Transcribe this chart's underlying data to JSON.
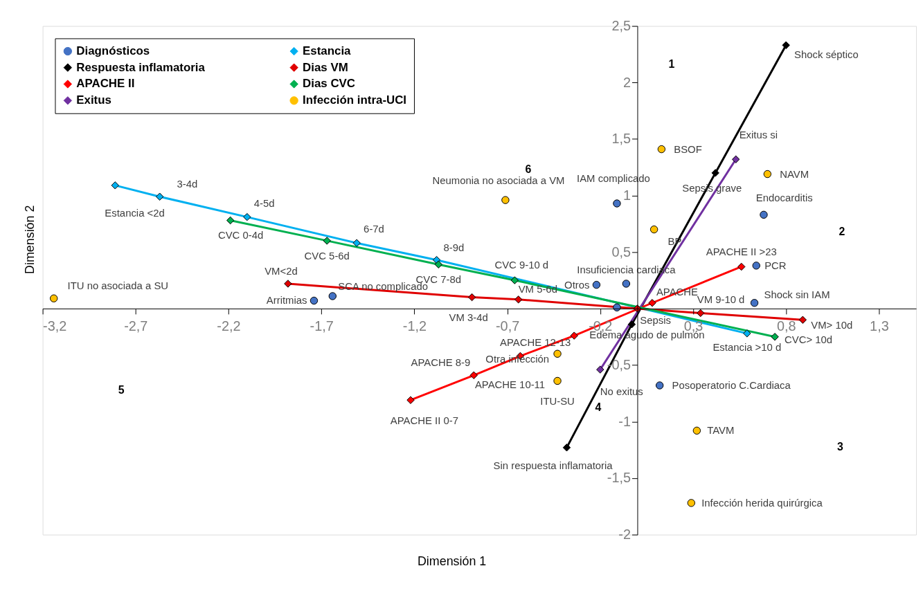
{
  "chart_data": {
    "type": "scatter",
    "xlabel": "Dimensión 1",
    "ylabel": "Dimensión 2",
    "xlim": [
      -3.2,
      1.5
    ],
    "ylim": [
      -2,
      2.5
    ],
    "xticks": [
      {
        "value": -3.2,
        "label": "-3,2"
      },
      {
        "value": -2.7,
        "label": "-2,7"
      },
      {
        "value": -2.2,
        "label": "-2,2"
      },
      {
        "value": -1.7,
        "label": "-1,7"
      },
      {
        "value": -1.2,
        "label": "-1,2"
      },
      {
        "value": -0.7,
        "label": "-0,7"
      },
      {
        "value": -0.2,
        "label": "-0,2"
      },
      {
        "value": 0.3,
        "label": "0,3"
      },
      {
        "value": 0.8,
        "label": "0,8"
      },
      {
        "value": 1.3,
        "label": "1,3"
      }
    ],
    "yticks": [
      -2,
      {
        "value": -1.5,
        "label": "-1,5"
      },
      -1,
      {
        "value": -0.5,
        "label": "-0,5"
      },
      {
        "value": 0.5,
        "label": "0,5"
      },
      1,
      {
        "value": 1.5,
        "label": "1,5"
      },
      2,
      {
        "value": 2.5,
        "label": "2,5"
      }
    ],
    "grid": false,
    "legend": "top left",
    "series": [
      {
        "name": "Diagnósticos",
        "type": "scatter",
        "marker": "circle",
        "color": "#4472c4",
        "x": [
          -1.74,
          -1.64,
          -0.11,
          -0.06,
          -0.22,
          -0.11,
          0.68,
          0.64,
          0.63,
          0.12
        ],
        "values": [
          0.07,
          0.11,
          0.93,
          0.22,
          0.21,
          0.01,
          0.83,
          0.38,
          0.05,
          -0.68
        ]
      },
      {
        "name": "Respuesta inflamatoria",
        "type": "line",
        "marker": "diamond",
        "color": "#000000",
        "x": [
          -0.38,
          -0.03,
          0.42,
          0.8
        ],
        "values": [
          -1.23,
          -0.14,
          1.2,
          2.33
        ]
      },
      {
        "name": "APACHE II",
        "type": "line",
        "marker": "diamond",
        "color": "#ff0000",
        "x": [
          -1.22,
          -0.88,
          -0.63,
          -0.34,
          0.08,
          0.56
        ],
        "values": [
          -0.81,
          -0.59,
          -0.42,
          -0.24,
          0.05,
          0.37
        ]
      },
      {
        "name": "Exitus",
        "type": "line",
        "marker": "diamond",
        "color": "#7030a0",
        "x": [
          -0.2,
          0.53
        ],
        "values": [
          -0.54,
          1.32
        ]
      },
      {
        "name": "Estancia",
        "type": "line",
        "marker": "diamond",
        "color": "#00b0f0",
        "x": [
          -2.81,
          -2.57,
          -2.1,
          -1.51,
          -1.08,
          0.59
        ],
        "values": [
          1.09,
          0.99,
          0.81,
          0.58,
          0.43,
          -0.22
        ]
      },
      {
        "name": "Dias VM",
        "type": "line",
        "marker": "diamond",
        "color": "#e00000",
        "x": [
          -1.88,
          -0.89,
          -0.64,
          0.0,
          0.34,
          0.89
        ],
        "values": [
          0.22,
          0.1,
          0.08,
          0.0,
          -0.04,
          -0.1
        ]
      },
      {
        "name": "Dias CVC",
        "type": "line",
        "marker": "diamond",
        "color": "#00b050",
        "x": [
          -2.19,
          -1.67,
          -1.07,
          -0.66,
          0.74
        ],
        "values": [
          0.78,
          0.6,
          0.39,
          0.25,
          -0.25
        ]
      },
      {
        "name": "Infección intra-UCI",
        "type": "scatter",
        "marker": "circle",
        "color": "#ffc000",
        "x": [
          -3.14,
          -0.71,
          0.13,
          0.7,
          0.09,
          -0.43,
          -0.43,
          0.32,
          0.29
        ],
        "values": [
          0.09,
          0.96,
          1.41,
          1.19,
          0.7,
          -0.4,
          -0.64,
          -1.08,
          -1.72
        ]
      }
    ],
    "annotations": [
      {
        "text": "Arritmias",
        "x": -1.74,
        "y": 0.07
      },
      {
        "text": "SCA no complicado",
        "x": -1.64,
        "y": 0.11
      },
      {
        "text": "IAM complicado",
        "x": -0.11,
        "y": 0.93
      },
      {
        "text": "Insuficiencia cardiaca",
        "x": -0.06,
        "y": 0.22
      },
      {
        "text": "Otros",
        "x": -0.22,
        "y": 0.21
      },
      {
        "text": "Edema agudo de pulmón",
        "x": -0.11,
        "y": 0.01
      },
      {
        "text": "Endocarditis",
        "x": 0.68,
        "y": 0.83
      },
      {
        "text": "PCR",
        "x": 0.64,
        "y": 0.38
      },
      {
        "text": "Shock sin IAM",
        "x": 0.63,
        "y": 0.05
      },
      {
        "text": "Posoperatorio C.Cardiaca",
        "x": 0.12,
        "y": -0.68
      },
      {
        "text": "Sin respuesta inflamatoria",
        "x": -0.38,
        "y": -1.23
      },
      {
        "text": "Sepsis",
        "x": -0.03,
        "y": -0.14
      },
      {
        "text": "Sepsis grave",
        "x": 0.42,
        "y": 1.2
      },
      {
        "text": "Shock séptico",
        "x": 0.8,
        "y": 2.33
      },
      {
        "text": "APACHE II 0-7",
        "x": -1.22,
        "y": -0.81
      },
      {
        "text": "APACHE 8-9",
        "x": -0.88,
        "y": -0.59
      },
      {
        "text": "APACHE 10-11",
        "x": -0.63,
        "y": -0.42
      },
      {
        "text": "APACHE 12-13",
        "x": -0.34,
        "y": -0.24
      },
      {
        "text": "APACHE",
        "x": 0.08,
        "y": 0.05
      },
      {
        "text": "APACHE II >23",
        "x": 0.56,
        "y": 0.37
      },
      {
        "text": "Exitus si",
        "x": 0.53,
        "y": 1.32
      },
      {
        "text": "No exitus",
        "x": -0.2,
        "y": -0.54
      },
      {
        "text": "Estancia <2d",
        "x": -2.81,
        "y": 1.09
      },
      {
        "text": "3-4d",
        "x": -2.57,
        "y": 0.99
      },
      {
        "text": "4-5d",
        "x": -2.1,
        "y": 0.81
      },
      {
        "text": "6-7d",
        "x": -1.51,
        "y": 0.58
      },
      {
        "text": "8-9d",
        "x": -1.08,
        "y": 0.43
      },
      {
        "text": "Estancia >10 d",
        "x": 0.59,
        "y": -0.22
      },
      {
        "text": "VM<2d",
        "x": -1.88,
        "y": 0.22
      },
      {
        "text": "VM 3-4d",
        "x": -0.89,
        "y": 0.1
      },
      {
        "text": "VM 5-6d",
        "x": -0.64,
        "y": 0.08
      },
      {
        "text": "VM 9-10 d",
        "x": 0.34,
        "y": -0.04
      },
      {
        "text": "VM> 10d",
        "x": 0.89,
        "y": -0.1
      },
      {
        "text": "CVC 0-4d",
        "x": -2.19,
        "y": 0.78
      },
      {
        "text": "CVC 5-6d",
        "x": -1.67,
        "y": 0.6
      },
      {
        "text": "CVC 7-8d",
        "x": -1.07,
        "y": 0.39
      },
      {
        "text": "CVC 9-10 d",
        "x": -0.66,
        "y": 0.25
      },
      {
        "text": "CVC> 10d",
        "x": 0.74,
        "y": -0.25
      },
      {
        "text": "ITU no asociada a SU",
        "x": -3.14,
        "y": 0.09
      },
      {
        "text": "Neumonia no asociada a VM",
        "x": -0.71,
        "y": 0.96
      },
      {
        "text": "BSOF",
        "x": 0.13,
        "y": 1.41
      },
      {
        "text": "NAVM",
        "x": 0.7,
        "y": 1.19
      },
      {
        "text": "BP",
        "x": 0.09,
        "y": 0.7
      },
      {
        "text": "Otra infección",
        "x": -0.43,
        "y": -0.4
      },
      {
        "text": "ITU-SU",
        "x": -0.43,
        "y": -0.64
      },
      {
        "text": "TAVM",
        "x": 0.32,
        "y": -1.08
      },
      {
        "text": "Infección herida quirúrgica",
        "x": 0.29,
        "y": -1.72
      },
      "1",
      "2",
      "3",
      "4",
      "5",
      "6"
    ]
  }
}
